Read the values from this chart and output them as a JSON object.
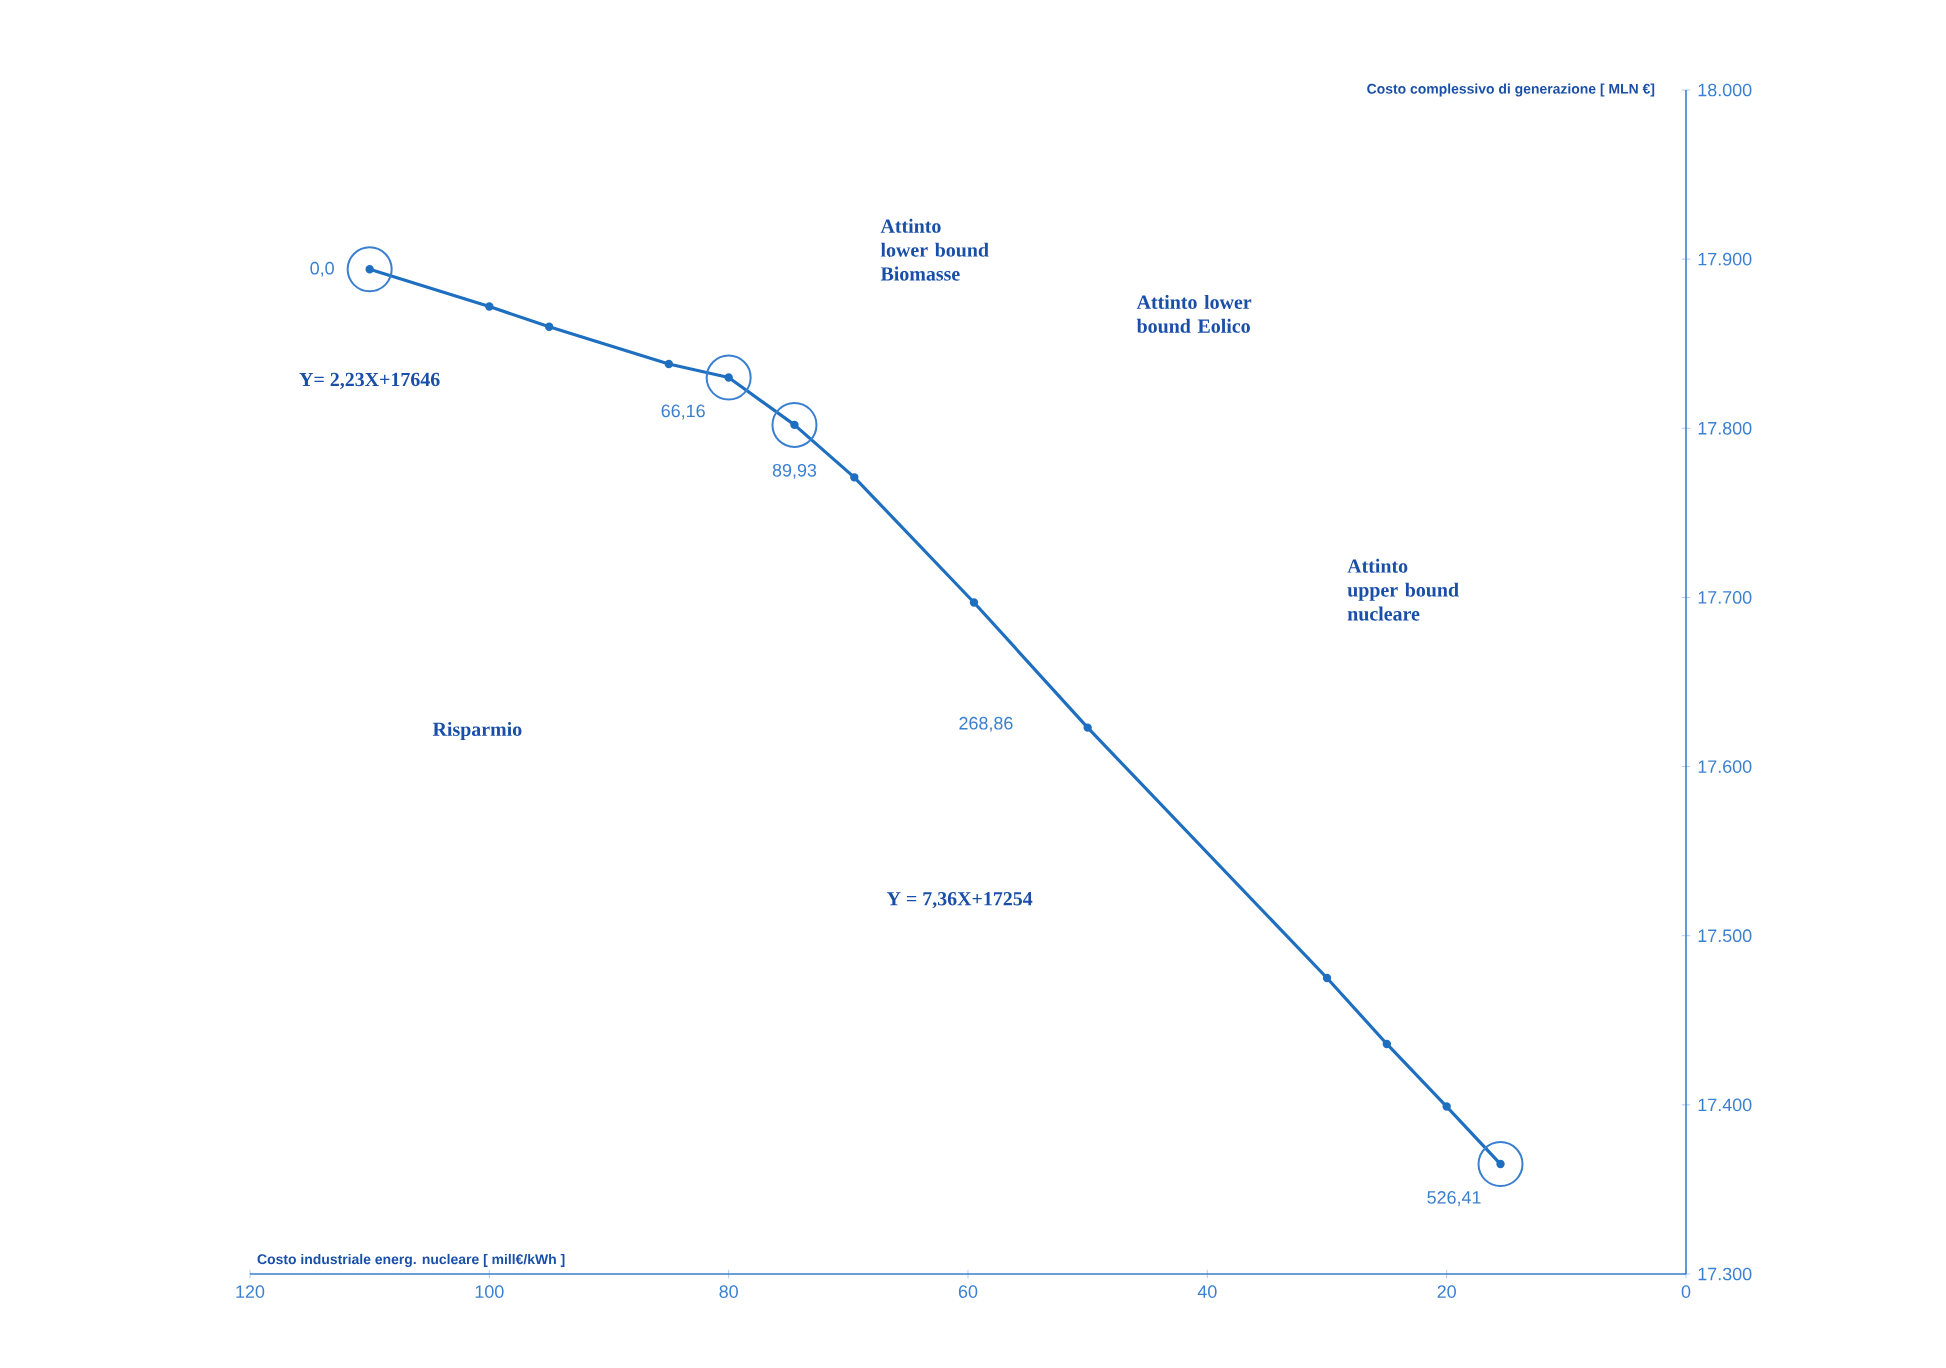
{
  "chart_data": {
    "type": "line",
    "xlabel": "Costo industriale energ. nucleare [ mill€/kWh ]",
    "ylabel": "Costo complessivo di generazione [ MLN €]",
    "x": [
      110,
      100,
      95,
      85,
      80,
      74.5,
      69.5,
      59.5,
      50,
      30,
      25,
      20,
      15.5
    ],
    "series": [
      {
        "color": "#1f6fc0",
        "values": [
          17894,
          17872,
          17860,
          17838,
          17830,
          17802,
          17771,
          17697,
          17623,
          17475,
          17436,
          17399,
          17365
        ]
      }
    ],
    "xlim": [
      120,
      0
    ],
    "ylim": [
      17300,
      18000
    ],
    "xticks": [
      120,
      100,
      80,
      60,
      40,
      20,
      0
    ],
    "yticks": [
      {
        "value": 17300,
        "label": "17.300"
      },
      {
        "value": 17400,
        "label": "17.400"
      },
      {
        "value": 17500,
        "label": "17.500"
      },
      {
        "value": 17600,
        "label": "17.600"
      },
      {
        "value": 17700,
        "label": "17.700"
      },
      {
        "value": 17800,
        "label": "17.800"
      },
      {
        "value": 17900,
        "label": "17.900"
      },
      {
        "value": 18000,
        "label": "18.000"
      }
    ],
    "marker": "circle",
    "line_style": "solid",
    "annotations": [
      {
        "text": "0,0",
        "x": 110,
        "y": 17894
      },
      {
        "text": "66,16",
        "x": 80,
        "y": 17830
      },
      {
        "text": "89,93",
        "x": 74.5,
        "y": 17802
      },
      "268,86",
      {
        "text": "526,41",
        "x": 15.5,
        "y": 17365
      },
      "Y= 2,23X+17646",
      "Y = 7,36X+17254",
      "Attinto lower bound Biomasse",
      "Attinto lower bound Eolico",
      "Attinto upper bound nucleare",
      "Risparmio"
    ]
  }
}
